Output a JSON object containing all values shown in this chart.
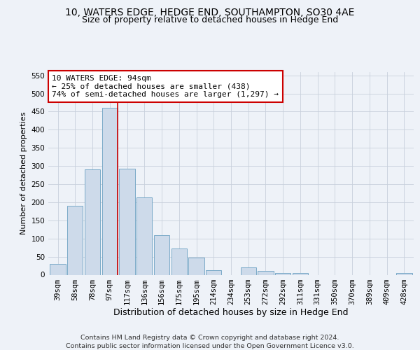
{
  "title": "10, WATERS EDGE, HEDGE END, SOUTHAMPTON, SO30 4AE",
  "subtitle": "Size of property relative to detached houses in Hedge End",
  "xlabel": "Distribution of detached houses by size in Hedge End",
  "ylabel": "Number of detached properties",
  "bar_labels": [
    "39sqm",
    "58sqm",
    "78sqm",
    "97sqm",
    "117sqm",
    "136sqm",
    "156sqm",
    "175sqm",
    "195sqm",
    "214sqm",
    "234sqm",
    "253sqm",
    "272sqm",
    "292sqm",
    "311sqm",
    "331sqm",
    "350sqm",
    "370sqm",
    "389sqm",
    "409sqm",
    "428sqm"
  ],
  "bar_values": [
    30,
    190,
    290,
    460,
    293,
    213,
    110,
    73,
    47,
    13,
    0,
    20,
    10,
    5,
    5,
    0,
    0,
    0,
    0,
    0,
    5
  ],
  "bar_color": "#cddaea",
  "bar_edgecolor": "#7aaac8",
  "bar_linewidth": 0.7,
  "grid_color": "#c8d0dc",
  "background_color": "#eef2f8",
  "red_line_index": 3,
  "red_line_color": "#cc0000",
  "annotation_text": "10 WATERS EDGE: 94sqm\n← 25% of detached houses are smaller (438)\n74% of semi-detached houses are larger (1,297) →",
  "annotation_box_facecolor": "#ffffff",
  "annotation_box_edgecolor": "#cc0000",
  "ylim": [
    0,
    560
  ],
  "yticks": [
    0,
    50,
    100,
    150,
    200,
    250,
    300,
    350,
    400,
    450,
    500,
    550
  ],
  "footer_line1": "Contains HM Land Registry data © Crown copyright and database right 2024.",
  "footer_line2": "Contains public sector information licensed under the Open Government Licence v3.0.",
  "title_fontsize": 10,
  "subtitle_fontsize": 9,
  "xlabel_fontsize": 9,
  "ylabel_fontsize": 8,
  "tick_fontsize": 7.5,
  "annotation_fontsize": 8,
  "footer_fontsize": 6.8
}
